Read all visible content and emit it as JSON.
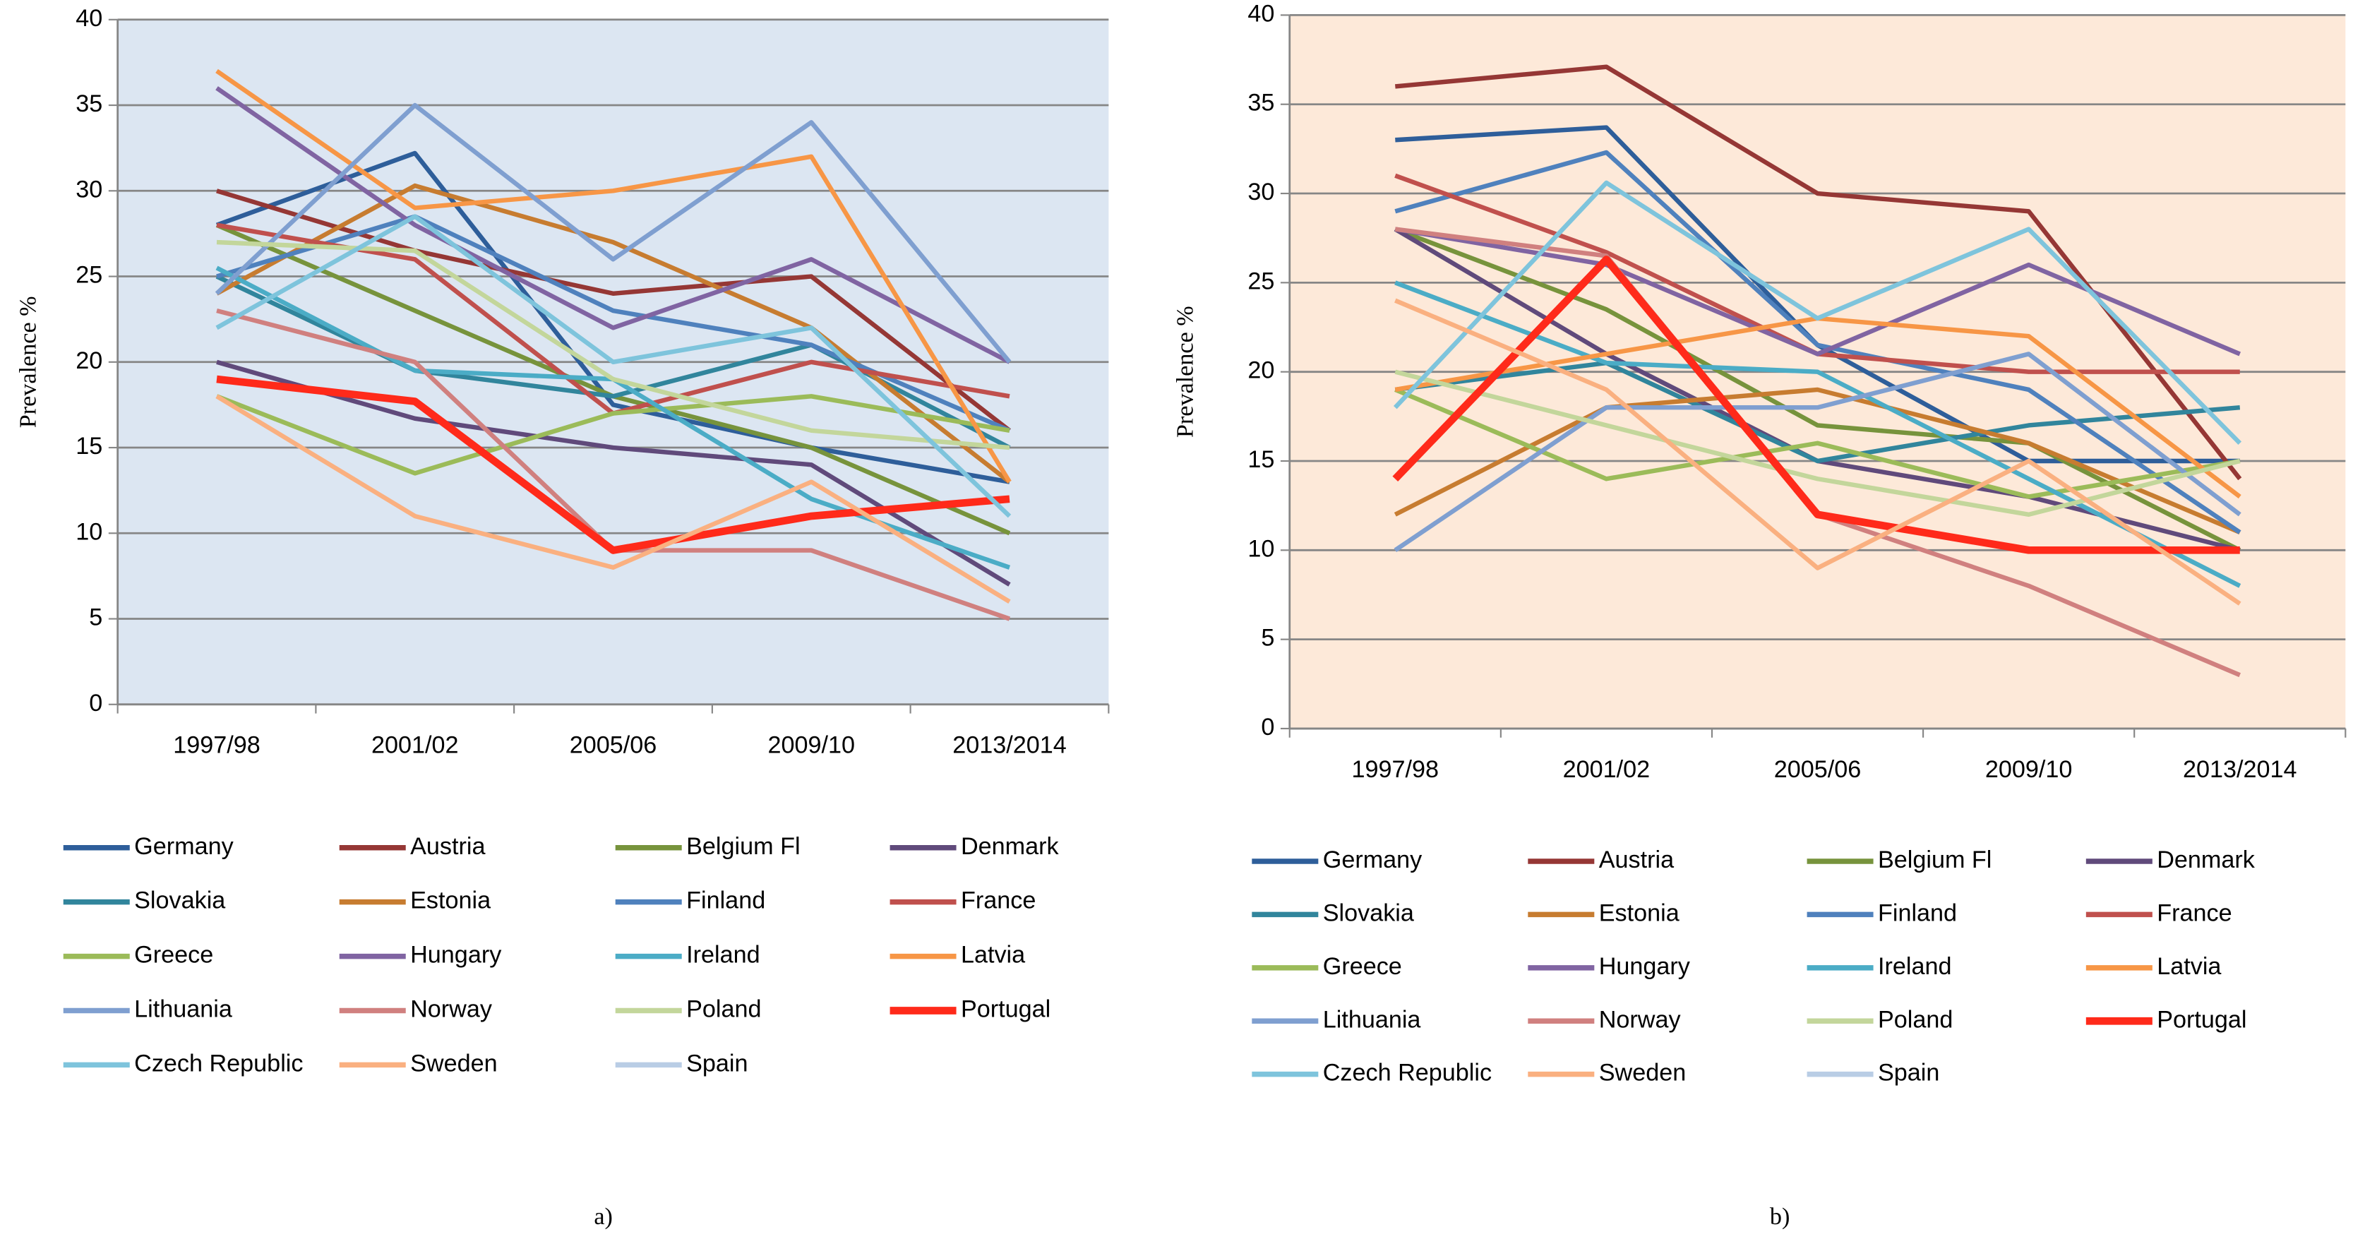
{
  "chart_data": [
    {
      "type": "line",
      "y_label": "Prevalence %",
      "caption": "a)",
      "background": "#dce6f2",
      "categories": [
        "1997/98",
        "2001/02",
        "2005/06",
        "2009/10",
        "2013/2014"
      ],
      "ylim": [
        0,
        40
      ],
      "yticks": [
        0,
        5,
        10,
        15,
        20,
        25,
        30,
        35,
        40
      ],
      "grid": true,
      "series": [
        {
          "name": "Germany",
          "color": "#2e5e9a",
          "values": [
            28,
            32.2,
            17.5,
            15,
            13
          ]
        },
        {
          "name": "Austria",
          "color": "#953735",
          "values": [
            30,
            26.5,
            24,
            25,
            16
          ]
        },
        {
          "name": "Belgium Fl",
          "color": "#77933c",
          "values": [
            28,
            23,
            18,
            15,
            10
          ]
        },
        {
          "name": "Denmark",
          "color": "#604a7b",
          "values": [
            20,
            16.7,
            15,
            14,
            7
          ]
        },
        {
          "name": "Slovakia",
          "color": "#31859c",
          "values": [
            25,
            19.5,
            18,
            21,
            15
          ]
        },
        {
          "name": "Estonia",
          "color": "#c77c30",
          "values": [
            24,
            30.3,
            27,
            22,
            13
          ]
        },
        {
          "name": "Finland",
          "color": "#4f81bd",
          "values": [
            25,
            28.5,
            23,
            21,
            16
          ]
        },
        {
          "name": "France",
          "color": "#c0504d",
          "values": [
            28,
            26,
            17,
            20,
            18
          ]
        },
        {
          "name": "Greece",
          "color": "#9bbb59",
          "values": [
            18,
            13.5,
            17,
            18,
            16
          ]
        },
        {
          "name": "Hungary",
          "color": "#8064a2",
          "values": [
            36,
            28,
            22,
            26,
            20
          ]
        },
        {
          "name": "Ireland",
          "color": "#4bacc6",
          "values": [
            25.5,
            19.5,
            19,
            12,
            8
          ]
        },
        {
          "name": "Latvia",
          "color": "#f79646",
          "values": [
            37,
            29,
            30,
            32,
            13
          ]
        },
        {
          "name": "Lithuania",
          "color": "#7f9fd0",
          "values": [
            24,
            35,
            26,
            34,
            20
          ]
        },
        {
          "name": "Norway",
          "color": "#d0807f",
          "values": [
            23,
            20,
            9,
            9,
            5
          ]
        },
        {
          "name": "Poland",
          "color": "#c3d69b",
          "values": [
            27,
            26.5,
            19,
            16,
            15
          ]
        },
        {
          "name": "Portugal",
          "color": "#ff2a1a",
          "bold": true,
          "values": [
            19,
            17.7,
            9,
            11,
            12
          ]
        },
        {
          "name": "Czech Republic",
          "color": "#7ec4dc",
          "values": [
            22,
            28.5,
            20,
            22,
            11
          ]
        },
        {
          "name": "Sweden",
          "color": "#fab080",
          "values": [
            18,
            11,
            8,
            13,
            6
          ]
        },
        {
          "name": "Spain",
          "color": "#b9cde5",
          "values": [
            null,
            null,
            null,
            null,
            null
          ]
        }
      ]
    },
    {
      "type": "line",
      "y_label": "Prevalence %",
      "caption": "b)",
      "background": "#fde9d9",
      "categories": [
        "1997/98",
        "2001/02",
        "2005/06",
        "2009/10",
        "2013/2014"
      ],
      "ylim": [
        0,
        40
      ],
      "yticks": [
        0,
        5,
        10,
        15,
        20,
        25,
        30,
        35,
        40
      ],
      "grid": true,
      "series": [
        {
          "name": "Germany",
          "color": "#2e5e9a",
          "values": [
            33,
            33.7,
            21.5,
            15,
            15
          ]
        },
        {
          "name": "Austria",
          "color": "#953735",
          "values": [
            36,
            37.1,
            30,
            29,
            14
          ]
        },
        {
          "name": "Belgium Fl",
          "color": "#77933c",
          "values": [
            28,
            23.5,
            17,
            16,
            10
          ]
        },
        {
          "name": "Denmark",
          "color": "#604a7b",
          "values": [
            28,
            21,
            15,
            13,
            10
          ]
        },
        {
          "name": "Slovakia",
          "color": "#31859c",
          "values": [
            19,
            20.5,
            15,
            17,
            18
          ]
        },
        {
          "name": "Estonia",
          "color": "#c77c30",
          "values": [
            12,
            18,
            19,
            16,
            11
          ]
        },
        {
          "name": "Finland",
          "color": "#4f81bd",
          "values": [
            29,
            32.3,
            21.5,
            19,
            11
          ]
        },
        {
          "name": "France",
          "color": "#c0504d",
          "values": [
            31,
            26.7,
            21,
            20,
            20
          ]
        },
        {
          "name": "Greece",
          "color": "#9bbb59",
          "values": [
            19,
            14,
            16,
            13,
            15
          ]
        },
        {
          "name": "Hungary",
          "color": "#8064a2",
          "values": [
            28,
            26,
            21,
            26,
            21
          ]
        },
        {
          "name": "Ireland",
          "color": "#4bacc6",
          "values": [
            25,
            20.5,
            20,
            14,
            8
          ]
        },
        {
          "name": "Latvia",
          "color": "#f79646",
          "values": [
            19,
            21,
            23,
            22,
            13
          ]
        },
        {
          "name": "Lithuania",
          "color": "#7f9fd0",
          "values": [
            10,
            18,
            18,
            21,
            12
          ]
        },
        {
          "name": "Norway",
          "color": "#d0807f",
          "values": [
            28,
            26.5,
            12,
            8,
            3
          ]
        },
        {
          "name": "Poland",
          "color": "#c3d69b",
          "values": [
            20,
            17,
            14,
            12,
            15
          ]
        },
        {
          "name": "Portugal",
          "color": "#ff2a1a",
          "bold": true,
          "values": [
            14,
            26.3,
            12,
            10,
            10
          ]
        },
        {
          "name": "Czech Republic",
          "color": "#7ec4dc",
          "values": [
            18,
            30.6,
            23,
            28,
            16
          ]
        },
        {
          "name": "Sweden",
          "color": "#fab080",
          "values": [
            24,
            19,
            9,
            15,
            7
          ]
        },
        {
          "name": "Spain",
          "color": "#b9cde5",
          "values": [
            null,
            null,
            null,
            null,
            null
          ]
        }
      ]
    }
  ]
}
